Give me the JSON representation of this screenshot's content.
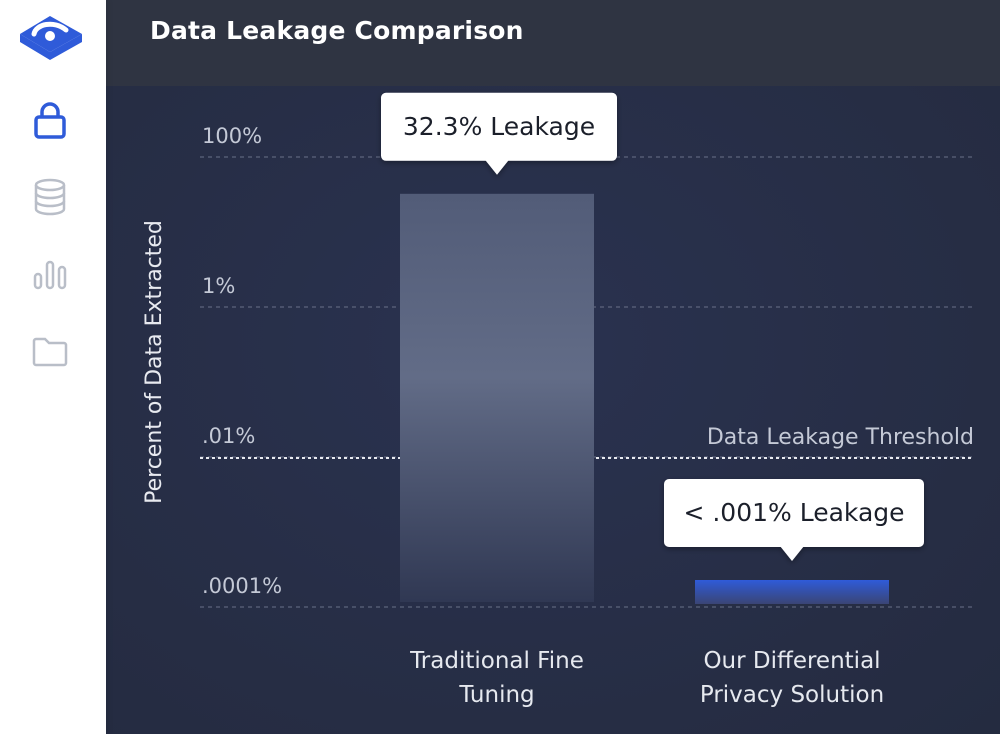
{
  "sidebar": {
    "items": [
      {
        "name": "lock",
        "active": true
      },
      {
        "name": "database",
        "active": false
      },
      {
        "name": "bar-chart",
        "active": false
      },
      {
        "name": "folder",
        "active": false
      }
    ],
    "accent_color": "#2f5bd9",
    "inactive_color": "#b9bec8"
  },
  "header": {
    "title": "Data Leakage Comparison"
  },
  "chart_data": {
    "type": "bar",
    "ylabel": "Percent of Data Extracted",
    "y_scale": "log",
    "y_ticks": [
      {
        "value": 100,
        "label": "100%"
      },
      {
        "value": 1,
        "label": "1%"
      },
      {
        "value": 0.01,
        "label": ".01%"
      },
      {
        "value": 0.0001,
        "label": ".0001%"
      }
    ],
    "categories": [
      "Traditional Fine Tuning",
      "Our Differential Privacy Solution"
    ],
    "category_lines": [
      [
        "Traditional Fine",
        "Tuning"
      ],
      [
        "Our Differential",
        "Privacy Solution"
      ]
    ],
    "values": [
      32.3,
      0.0005
    ],
    "callouts": [
      "32.3% Leakage",
      "< .001% Leakage"
    ],
    "threshold": {
      "value": 0.01,
      "label": "Data Leakage Threshold"
    },
    "colors": {
      "bar1": "#6b7591",
      "bar2": "#2f5bd9",
      "grid": "#6a7189"
    }
  }
}
